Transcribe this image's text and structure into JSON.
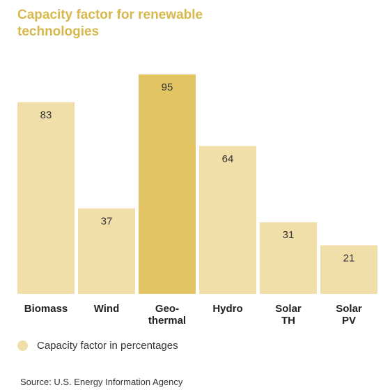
{
  "title": "Capacity factor for renewable technologies",
  "legend": {
    "label": "Capacity factor in percentages"
  },
  "source": "Source:  U.S. Energy Information Agency",
  "colors": {
    "bar": "#f1dfa9",
    "highlight": "#e2c462",
    "title": "#d8b84d",
    "legend_dot": "#f1dfa9"
  },
  "chart_data": {
    "type": "bar",
    "title": "Capacity factor for renewable technologies",
    "categories": [
      "Biomass",
      "Wind",
      "Geo-thermal",
      "Hydro",
      "Solar TH",
      "Solar PV"
    ],
    "category_lines": [
      [
        "Biomass"
      ],
      [
        "Wind"
      ],
      [
        "Geo-",
        "thermal"
      ],
      [
        "Hydro"
      ],
      [
        "Solar",
        "TH"
      ],
      [
        "Solar",
        "PV"
      ]
    ],
    "series": [
      {
        "name": "Capacity factor in percentages",
        "values": [
          83,
          37,
          95,
          64,
          31,
          21
        ]
      }
    ],
    "highlight_index": 2,
    "xlabel": "",
    "ylabel": "",
    "ylim": [
      0,
      95
    ],
    "grid": false,
    "legend_position": "bottom-left",
    "data_labels": true
  }
}
